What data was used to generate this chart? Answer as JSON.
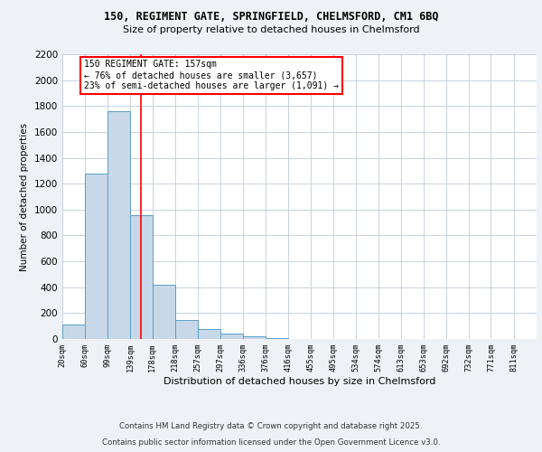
{
  "title_line1": "150, REGIMENT GATE, SPRINGFIELD, CHELMSFORD, CM1 6BQ",
  "title_line2": "Size of property relative to detached houses in Chelmsford",
  "xlabel": "Distribution of detached houses by size in Chelmsford",
  "ylabel": "Number of detached properties",
  "bin_labels": [
    "20sqm",
    "60sqm",
    "99sqm",
    "139sqm",
    "178sqm",
    "218sqm",
    "257sqm",
    "297sqm",
    "336sqm",
    "376sqm",
    "416sqm",
    "455sqm",
    "495sqm",
    "534sqm",
    "574sqm",
    "613sqm",
    "653sqm",
    "692sqm",
    "732sqm",
    "771sqm",
    "811sqm"
  ],
  "bin_edges": [
    20,
    60,
    99,
    139,
    178,
    218,
    257,
    297,
    336,
    376,
    416,
    455,
    495,
    534,
    574,
    613,
    653,
    692,
    732,
    771,
    811,
    851
  ],
  "bar_heights": [
    115,
    1280,
    1760,
    960,
    420,
    150,
    75,
    40,
    20,
    5,
    2,
    1,
    1,
    0,
    0,
    0,
    0,
    0,
    0,
    0,
    0
  ],
  "bar_color": "#c8d8e8",
  "bar_edge_color": "#5a9ec9",
  "red_line_x": 157,
  "ylim": [
    0,
    2200
  ],
  "yticks": [
    0,
    200,
    400,
    600,
    800,
    1000,
    1200,
    1400,
    1600,
    1800,
    2000,
    2200
  ],
  "annotation_box_text": "150 REGIMENT GATE: 157sqm\n← 76% of detached houses are smaller (3,657)\n23% of semi-detached houses are larger (1,091) →",
  "footer_line1": "Contains HM Land Registry data © Crown copyright and database right 2025.",
  "footer_line2": "Contains public sector information licensed under the Open Government Licence v3.0.",
  "background_color": "#eef2f7",
  "plot_background": "#ffffff",
  "grid_color": "#c0ccd8"
}
